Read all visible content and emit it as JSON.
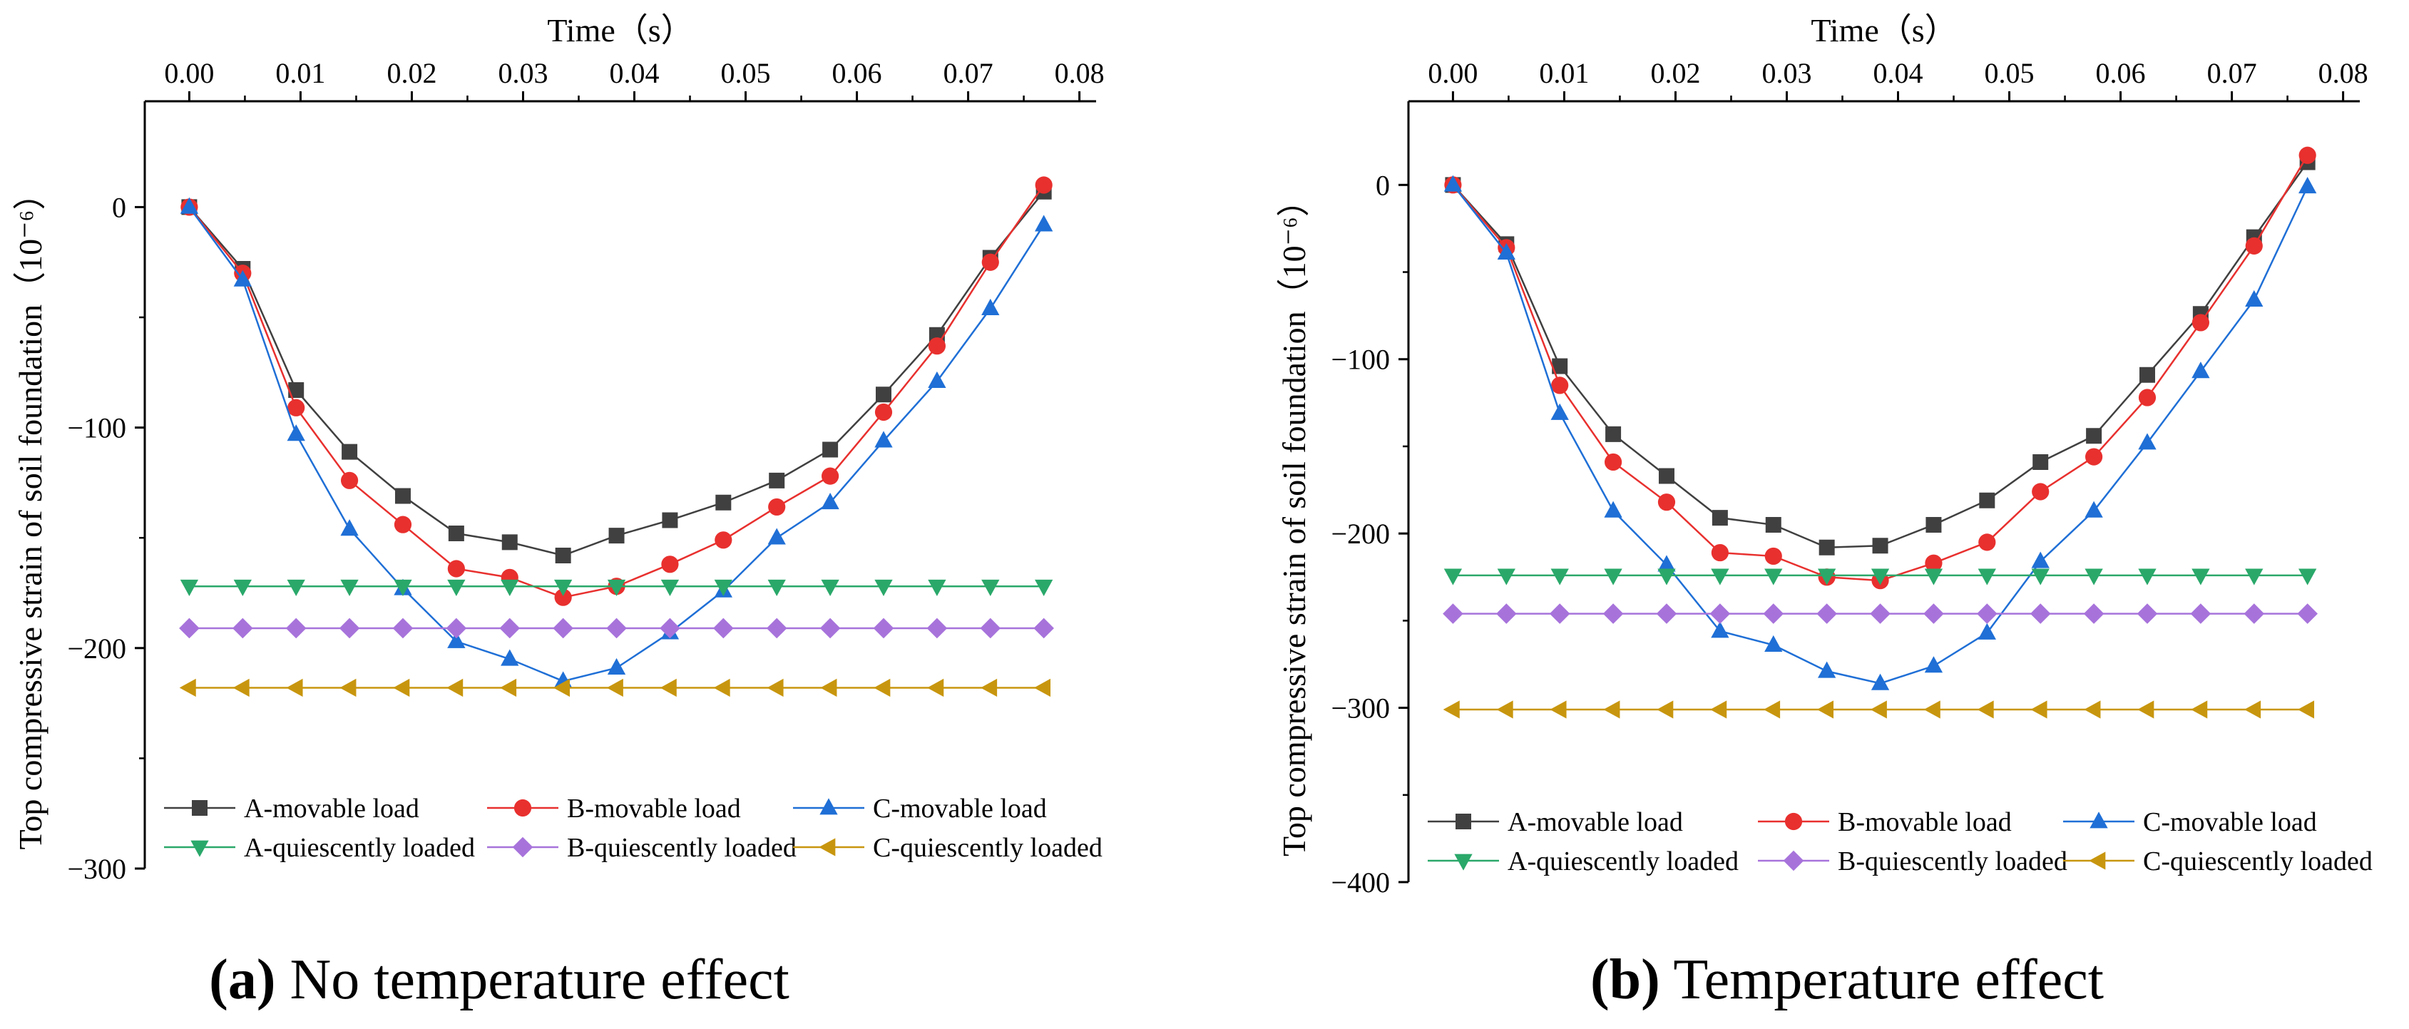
{
  "figure": {
    "panels": [
      {
        "label": "(a)",
        "caption": "No temperature effect"
      },
      {
        "label": "(b)",
        "caption": "Temperature effect"
      }
    ]
  },
  "chart_data": [
    {
      "type": "line",
      "panel_label": "(a)",
      "caption": "No temperature effect",
      "title": "",
      "xlabel": "Time（s）",
      "ylabel": "Top compressive strain of soil foundation（10⁻⁶）",
      "x_axis_position": "top",
      "xlim": [
        -0.004,
        0.0815
      ],
      "ylim": [
        -300,
        48
      ],
      "xticks": [
        0.0,
        0.01,
        0.02,
        0.03,
        0.04,
        0.05,
        0.06,
        0.07,
        0.08
      ],
      "xtick_labels": [
        "0.00",
        "0.01",
        "0.02",
        "0.03",
        "0.04",
        "0.05",
        "0.06",
        "0.07",
        "0.08"
      ],
      "yticks": [
        0,
        -100,
        -200,
        -300
      ],
      "ytick_labels": [
        "0",
        "−100",
        "−200",
        "−300"
      ],
      "grid": false,
      "legend_position": "bottom, 3 columns",
      "x": [
        0.0,
        0.0048,
        0.0096,
        0.0144,
        0.0192,
        0.024,
        0.0288,
        0.0336,
        0.0384,
        0.0432,
        0.048,
        0.0528,
        0.0576,
        0.0624,
        0.0672,
        0.072,
        0.0768
      ],
      "series": [
        {
          "name": "A-movable load",
          "color": "#404040",
          "marker": "square",
          "values": [
            0,
            -28,
            -83,
            -111,
            -131,
            -148,
            -152,
            -158,
            -149,
            -142,
            -134,
            -124,
            -110,
            -85,
            -58,
            -23,
            7
          ]
        },
        {
          "name": "B-movable load",
          "color": "#e8302e",
          "marker": "circle",
          "values": [
            0,
            -30,
            -91,
            -124,
            -144,
            -164,
            -168,
            -177,
            -172,
            -162,
            -151,
            -136,
            -122,
            -93,
            -63,
            -25,
            10
          ]
        },
        {
          "name": "C-movable load",
          "color": "#1f6fd6",
          "marker": "triangle-up",
          "values": [
            0,
            -33,
            -103,
            -146,
            -173,
            -197,
            -205,
            -215,
            -209,
            -193,
            -174,
            -150,
            -134,
            -106,
            -79,
            -46,
            -8
          ]
        },
        {
          "name": "A-quiescently loaded",
          "color": "#2aa86a",
          "marker": "triangle-down",
          "values": [
            -172,
            -172,
            -172,
            -172,
            -172,
            -172,
            -172,
            -172,
            -172,
            -172,
            -172,
            -172,
            -172,
            -172,
            -172,
            -172,
            -172
          ]
        },
        {
          "name": "B-quiescently loaded",
          "color": "#a773db",
          "marker": "diamond",
          "values": [
            -191,
            -191,
            -191,
            -191,
            -191,
            -191,
            -191,
            -191,
            -191,
            -191,
            -191,
            -191,
            -191,
            -191,
            -191,
            -191,
            -191
          ]
        },
        {
          "name": "C-quiescently loaded",
          "color": "#c8960e",
          "marker": "triangle-left",
          "values": [
            -218,
            -218,
            -218,
            -218,
            -218,
            -218,
            -218,
            -218,
            -218,
            -218,
            -218,
            -218,
            -218,
            -218,
            -218,
            -218,
            -218
          ]
        }
      ]
    },
    {
      "type": "line",
      "panel_label": "(b)",
      "caption": "Temperature effect",
      "title": "",
      "xlabel": "Time（s）",
      "ylabel": "Top compressive strain of soil foundation（10⁻⁶）",
      "x_axis_position": "top",
      "xlim": [
        -0.004,
        0.0815
      ],
      "ylim": [
        -400,
        48
      ],
      "xticks": [
        0.0,
        0.01,
        0.02,
        0.03,
        0.04,
        0.05,
        0.06,
        0.07,
        0.08
      ],
      "xtick_labels": [
        "0.00",
        "0.01",
        "0.02",
        "0.03",
        "0.04",
        "0.05",
        "0.06",
        "0.07",
        "0.08"
      ],
      "yticks": [
        0,
        -100,
        -200,
        -300,
        -400
      ],
      "ytick_labels": [
        "0",
        "−100",
        "−200",
        "−300",
        "−400"
      ],
      "grid": false,
      "legend_position": "bottom, 3 columns",
      "x": [
        0.0,
        0.0048,
        0.0096,
        0.0144,
        0.0192,
        0.024,
        0.0288,
        0.0336,
        0.0384,
        0.0432,
        0.048,
        0.0528,
        0.0576,
        0.0624,
        0.0672,
        0.072,
        0.0768
      ],
      "series": [
        {
          "name": "A-movable load",
          "color": "#404040",
          "marker": "square",
          "values": [
            0,
            -34,
            -104,
            -143,
            -167,
            -191,
            -195,
            -208,
            -207,
            -195,
            -181,
            -159,
            -144,
            -109,
            -74,
            -30,
            13
          ]
        },
        {
          "name": "B-movable load",
          "color": "#e8302e",
          "marker": "circle",
          "values": [
            0,
            -36,
            -115,
            -159,
            -182,
            -211,
            -213,
            -225,
            -227,
            -217,
            -205,
            -176,
            -156,
            -122,
            -79,
            -35,
            17
          ]
        },
        {
          "name": "C-movable load",
          "color": "#1f6fd6",
          "marker": "triangle-up",
          "values": [
            0,
            -39,
            -131,
            -187,
            -218,
            -256,
            -264,
            -279,
            -286,
            -276,
            -257,
            -216,
            -187,
            -148,
            -107,
            -66,
            -1
          ]
        },
        {
          "name": "A-quiescently loaded",
          "color": "#2aa86a",
          "marker": "triangle-down",
          "values": [
            -224,
            -224,
            -224,
            -224,
            -224,
            -224,
            -224,
            -224,
            -224,
            -224,
            -224,
            -224,
            -224,
            -224,
            -224,
            -224,
            -224
          ]
        },
        {
          "name": "B-quiescently loaded",
          "color": "#a773db",
          "marker": "diamond",
          "values": [
            -246,
            -246,
            -246,
            -246,
            -246,
            -246,
            -246,
            -246,
            -246,
            -246,
            -246,
            -246,
            -246,
            -246,
            -246,
            -246,
            -246
          ]
        },
        {
          "name": "C-quiescently loaded",
          "color": "#c8960e",
          "marker": "triangle-left",
          "values": [
            -301,
            -301,
            -301,
            -301,
            -301,
            -301,
            -301,
            -301,
            -301,
            -301,
            -301,
            -301,
            -301,
            -301,
            -301,
            -301,
            -301
          ]
        }
      ]
    }
  ]
}
